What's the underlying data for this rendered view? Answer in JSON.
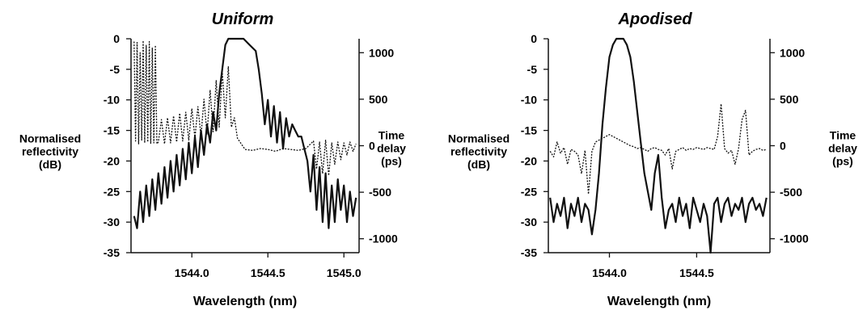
{
  "chart_data": [
    {
      "type": "line",
      "title": "Uniform",
      "xlabel": "Wavelength  (nm)",
      "ylabel_lines": [
        "Normalised",
        "reflectivity",
        "(dB)"
      ],
      "y2label_lines": [
        "Time",
        "delay",
        "(ps)"
      ],
      "xlim": [
        1543.6,
        1545.1
      ],
      "ylim": [
        -35,
        0
      ],
      "y2lim": [
        -1150,
        1150
      ],
      "xticks": [
        1544.0,
        1544.5,
        1545.0
      ],
      "xtick_labels": [
        "1544.0",
        "1544.5",
        "1545.0"
      ],
      "yticks": [
        0,
        -5,
        -10,
        -15,
        -20,
        -25,
        -30,
        -35
      ],
      "ytick_labels": [
        "0",
        "-5",
        "-10",
        "-15",
        "-20",
        "-25",
        "-30",
        "-35"
      ],
      "y2ticks": [
        1000,
        500,
        0,
        -500,
        -1000
      ],
      "y2tick_labels": [
        "1000",
        "500",
        "0",
        "-500",
        "-1000"
      ],
      "series": [
        {
          "style": "solid",
          "axis": "left",
          "x": [
            1543.62,
            1543.64,
            1543.66,
            1543.68,
            1543.7,
            1543.72,
            1543.74,
            1543.76,
            1543.78,
            1543.8,
            1543.82,
            1543.84,
            1543.86,
            1543.88,
            1543.9,
            1543.92,
            1543.94,
            1543.96,
            1543.98,
            1544.0,
            1544.02,
            1544.04,
            1544.06,
            1544.08,
            1544.1,
            1544.12,
            1544.14,
            1544.16,
            1544.18,
            1544.2,
            1544.22,
            1544.24,
            1544.26,
            1544.28,
            1544.3,
            1544.34,
            1544.38,
            1544.42,
            1544.44,
            1544.46,
            1544.48,
            1544.5,
            1544.52,
            1544.54,
            1544.56,
            1544.58,
            1544.6,
            1544.62,
            1544.64,
            1544.66,
            1544.68,
            1544.7,
            1544.72,
            1544.74,
            1544.76,
            1544.78,
            1544.8,
            1544.82,
            1544.84,
            1544.86,
            1544.88,
            1544.9,
            1544.92,
            1544.94,
            1544.96,
            1544.98,
            1545.0,
            1545.02,
            1545.04,
            1545.06,
            1545.08
          ],
          "y": [
            -29,
            -31,
            -25,
            -30,
            -24,
            -29,
            -23,
            -28,
            -22,
            -27,
            -21,
            -26,
            -20,
            -25,
            -19,
            -24,
            -18,
            -23,
            -17,
            -22,
            -16,
            -21,
            -15,
            -19,
            -14,
            -17,
            -12,
            -15,
            -9,
            -5,
            -1,
            0,
            0,
            0,
            0,
            0,
            -1,
            -2,
            -5,
            -9,
            -14,
            -10,
            -16,
            -11,
            -17,
            -12,
            -18,
            -13,
            -16,
            -14,
            -15,
            -16,
            -16,
            -18,
            -20,
            -25,
            -19,
            -28,
            -21,
            -30,
            -22,
            -31,
            -24,
            -30,
            -23,
            -28,
            -24,
            -30,
            -25,
            -29,
            -26
          ]
        },
        {
          "style": "dotted",
          "axis": "right",
          "x": [
            1543.62,
            1543.63,
            1543.64,
            1543.65,
            1543.66,
            1543.67,
            1543.68,
            1543.69,
            1543.7,
            1543.71,
            1543.72,
            1543.73,
            1543.74,
            1543.75,
            1543.76,
            1543.77,
            1543.78,
            1543.8,
            1543.82,
            1543.84,
            1543.86,
            1543.88,
            1543.9,
            1543.92,
            1543.94,
            1543.96,
            1543.98,
            1544.0,
            1544.02,
            1544.04,
            1544.06,
            1544.08,
            1544.1,
            1544.12,
            1544.14,
            1544.16,
            1544.18,
            1544.2,
            1544.22,
            1544.24,
            1544.26,
            1544.28,
            1544.3,
            1544.35,
            1544.4,
            1544.45,
            1544.5,
            1544.55,
            1544.6,
            1544.65,
            1544.7,
            1544.75,
            1544.8,
            1544.82,
            1544.84,
            1544.86,
            1544.88,
            1544.9,
            1544.92,
            1544.94,
            1544.96,
            1544.98,
            1545.0,
            1545.02,
            1545.04,
            1545.06,
            1545.08
          ],
          "y": [
            1120,
            50,
            1110,
            20,
            1000,
            60,
            1130,
            30,
            1080,
            40,
            1120,
            20,
            1050,
            30,
            1080,
            20,
            40,
            280,
            20,
            300,
            30,
            320,
            40,
            350,
            50,
            360,
            60,
            400,
            80,
            420,
            100,
            500,
            120,
            600,
            150,
            700,
            200,
            800,
            300,
            850,
            200,
            300,
            80,
            -40,
            -50,
            -30,
            -40,
            -60,
            -30,
            -40,
            -50,
            -30,
            50,
            -250,
            40,
            -300,
            60,
            -320,
            30,
            -200,
            40,
            -150,
            30,
            -100,
            40,
            -60,
            20
          ]
        }
      ]
    },
    {
      "type": "line",
      "title": "Apodised",
      "xlabel": "Wavelength  (nm)",
      "ylabel_lines": [
        "Normalised",
        "reflectivity",
        "(dB)"
      ],
      "y2label_lines": [
        "Time",
        "delay",
        "(ps)"
      ],
      "xlim": [
        1543.65,
        1544.92
      ],
      "ylim": [
        -35,
        0
      ],
      "y2lim": [
        -1150,
        1150
      ],
      "xticks": [
        1544.0,
        1544.5
      ],
      "xtick_labels": [
        "1544.0",
        "1544.5"
      ],
      "yticks": [
        0,
        -5,
        -10,
        -15,
        -20,
        -25,
        -30,
        -35
      ],
      "ytick_labels": [
        "0",
        "-5",
        "-10",
        "-15",
        "-20",
        "-25",
        "-30",
        "-35"
      ],
      "y2ticks": [
        1000,
        500,
        0,
        -500,
        -1000
      ],
      "y2tick_labels": [
        "1000",
        "500",
        "0",
        "-500",
        "-1000"
      ],
      "series": [
        {
          "style": "solid",
          "axis": "left",
          "x": [
            1543.66,
            1543.68,
            1543.7,
            1543.72,
            1543.74,
            1543.76,
            1543.78,
            1543.8,
            1543.82,
            1543.84,
            1543.86,
            1543.88,
            1543.9,
            1543.92,
            1543.94,
            1543.96,
            1543.98,
            1544.0,
            1544.02,
            1544.04,
            1544.06,
            1544.08,
            1544.1,
            1544.12,
            1544.14,
            1544.16,
            1544.18,
            1544.2,
            1544.22,
            1544.24,
            1544.26,
            1544.28,
            1544.3,
            1544.32,
            1544.34,
            1544.36,
            1544.38,
            1544.4,
            1544.42,
            1544.44,
            1544.46,
            1544.48,
            1544.5,
            1544.52,
            1544.54,
            1544.56,
            1544.58,
            1544.6,
            1544.62,
            1544.64,
            1544.66,
            1544.68,
            1544.7,
            1544.72,
            1544.74,
            1544.76,
            1544.78,
            1544.8,
            1544.82,
            1544.84,
            1544.86,
            1544.88,
            1544.9
          ],
          "y": [
            -26,
            -30,
            -27,
            -29,
            -26,
            -31,
            -27,
            -29,
            -26,
            -30,
            -27,
            -28,
            -32,
            -28,
            -22,
            -14,
            -8,
            -3,
            -1,
            0,
            0,
            0,
            -1,
            -3,
            -7,
            -12,
            -17,
            -22,
            -25,
            -28,
            -22,
            -19,
            -26,
            -31,
            -28,
            -27,
            -30,
            -26,
            -29,
            -27,
            -31,
            -26,
            -28,
            -30,
            -27,
            -29,
            -35,
            -27,
            -26,
            -30,
            -27,
            -26,
            -29,
            -27,
            -28,
            -26,
            -30,
            -27,
            -26,
            -28,
            -27,
            -29,
            -26
          ]
        },
        {
          "style": "dotted",
          "axis": "right",
          "x": [
            1543.66,
            1543.68,
            1543.7,
            1543.72,
            1543.74,
            1543.76,
            1543.78,
            1543.8,
            1543.82,
            1543.84,
            1543.86,
            1543.88,
            1543.9,
            1543.92,
            1543.94,
            1543.96,
            1543.98,
            1544.0,
            1544.02,
            1544.04,
            1544.06,
            1544.08,
            1544.1,
            1544.12,
            1544.14,
            1544.16,
            1544.18,
            1544.2,
            1544.22,
            1544.24,
            1544.26,
            1544.28,
            1544.3,
            1544.32,
            1544.34,
            1544.36,
            1544.38,
            1544.4,
            1544.42,
            1544.44,
            1544.46,
            1544.48,
            1544.5,
            1544.52,
            1544.54,
            1544.56,
            1544.58,
            1544.6,
            1544.62,
            1544.64,
            1544.66,
            1544.68,
            1544.7,
            1544.72,
            1544.74,
            1544.76,
            1544.78,
            1544.8,
            1544.82,
            1544.84,
            1544.86,
            1544.88,
            1544.9
          ],
          "y": [
            -60,
            -120,
            40,
            -80,
            -20,
            -200,
            -40,
            -60,
            -100,
            -300,
            -50,
            -520,
            -60,
            40,
            60,
            80,
            100,
            120,
            100,
            80,
            60,
            40,
            20,
            0,
            -10,
            -30,
            -20,
            -40,
            -60,
            -30,
            -20,
            -40,
            -50,
            -100,
            -30,
            -250,
            -60,
            -40,
            -20,
            -50,
            -30,
            -40,
            -20,
            -30,
            -40,
            -20,
            -30,
            -40,
            100,
            450,
            -30,
            -80,
            -50,
            -200,
            -30,
            280,
            380,
            -100,
            -60,
            -40,
            -30,
            -50,
            -40
          ]
        }
      ]
    }
  ]
}
